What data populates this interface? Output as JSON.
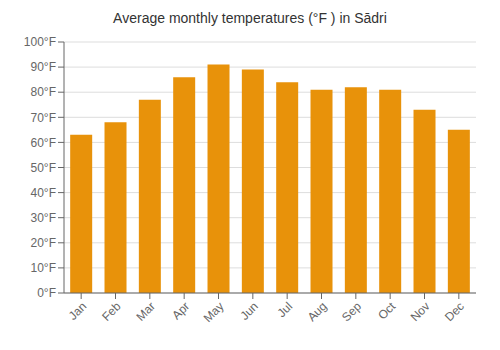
{
  "chart_data": {
    "type": "bar",
    "title": "Average monthly temperatures (°F ) in Sādri",
    "categories": [
      "Jan",
      "Feb",
      "Mar",
      "Apr",
      "May",
      "Jun",
      "Jul",
      "Aug",
      "Sep",
      "Oct",
      "Nov",
      "Dec"
    ],
    "values": [
      63,
      68,
      77,
      86,
      91,
      89,
      84,
      81,
      82,
      81,
      73,
      65
    ],
    "color": "#E8920A",
    "ylim": [
      0,
      100
    ],
    "yticks": [
      {
        "value": 0,
        "label": "0°F"
      },
      {
        "value": 10,
        "label": "10°F"
      },
      {
        "value": 20,
        "label": "20°F"
      },
      {
        "value": 30,
        "label": "30°F"
      },
      {
        "value": 40,
        "label": "40°F"
      },
      {
        "value": 50,
        "label": "50°F"
      },
      {
        "value": 60,
        "label": "60°F"
      },
      {
        "value": 70,
        "label": "70°F"
      },
      {
        "value": 80,
        "label": "80°F"
      },
      {
        "value": 90,
        "label": "90°F"
      },
      {
        "value": 100,
        "label": "100°F"
      }
    ],
    "grid": true
  }
}
